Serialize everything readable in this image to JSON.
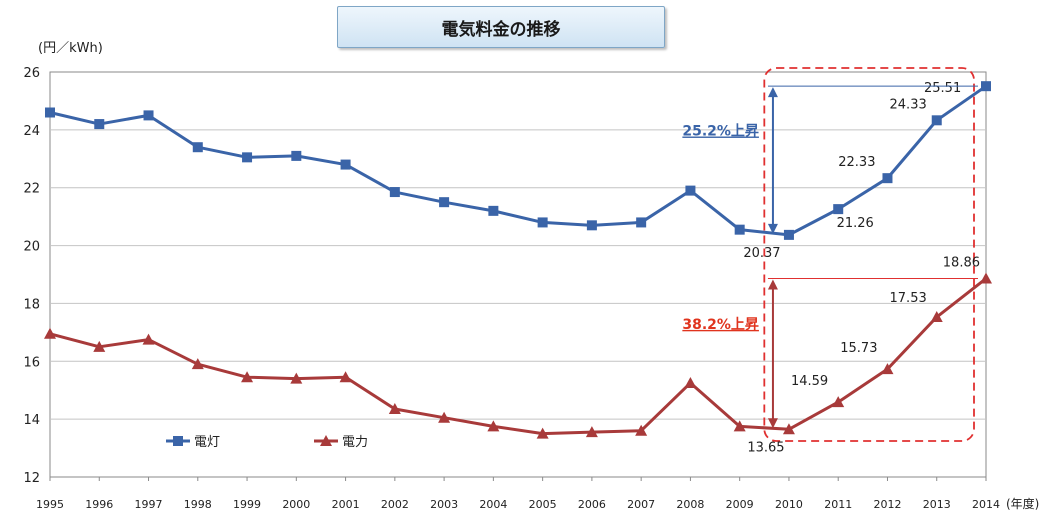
{
  "chart_data": {
    "type": "line",
    "title": "電気料金の推移",
    "ylabel": "(円／kWh)",
    "xlabel": "(年度)",
    "ylim": [
      12,
      26
    ],
    "yticks": [
      12,
      14,
      16,
      18,
      20,
      22,
      24,
      26
    ],
    "grid": true,
    "legend_position": "bottom-left",
    "categories": [
      "1995",
      "1996",
      "1997",
      "1998",
      "1999",
      "2000",
      "2001",
      "2002",
      "2003",
      "2004",
      "2005",
      "2006",
      "2007",
      "2008",
      "2009",
      "2010",
      "2011",
      "2012",
      "2013",
      "2014"
    ],
    "series": [
      {
        "name": "電灯",
        "color": "#3a64a8",
        "marker": "square",
        "values": [
          24.6,
          24.2,
          24.5,
          23.4,
          23.05,
          23.1,
          22.8,
          21.85,
          21.5,
          21.2,
          20.8,
          20.7,
          20.8,
          21.9,
          20.55,
          20.37,
          21.26,
          22.33,
          24.33,
          25.51
        ]
      },
      {
        "name": "電力",
        "color": "#a83a3a",
        "marker": "triangle",
        "values": [
          16.95,
          16.5,
          16.75,
          15.9,
          15.45,
          15.4,
          15.45,
          14.35,
          14.05,
          13.75,
          13.5,
          13.55,
          13.6,
          15.25,
          13.75,
          13.65,
          14.59,
          15.73,
          17.53,
          18.86
        ]
      }
    ],
    "data_labels": [
      {
        "series": 0,
        "year": "2010",
        "text": "20.37"
      },
      {
        "series": 0,
        "year": "2011",
        "text": "21.26"
      },
      {
        "series": 0,
        "year": "2012",
        "text": "22.33"
      },
      {
        "series": 0,
        "year": "2013",
        "text": "24.33"
      },
      {
        "series": 0,
        "year": "2014",
        "text": "25.51"
      },
      {
        "series": 1,
        "year": "2010",
        "text": "13.65"
      },
      {
        "series": 1,
        "year": "2011",
        "text": "14.59"
      },
      {
        "series": 1,
        "year": "2012",
        "text": "15.73"
      },
      {
        "series": 1,
        "year": "2013",
        "text": "17.53"
      },
      {
        "series": 1,
        "year": "2014",
        "text": "18.86"
      }
    ],
    "annotations": [
      {
        "text": "25.2%上昇",
        "color": "#3a64a8",
        "series": 0
      },
      {
        "text": "38.2%上昇",
        "color": "#e0341e",
        "series": 1
      }
    ],
    "highlight_color": "#e03030"
  }
}
